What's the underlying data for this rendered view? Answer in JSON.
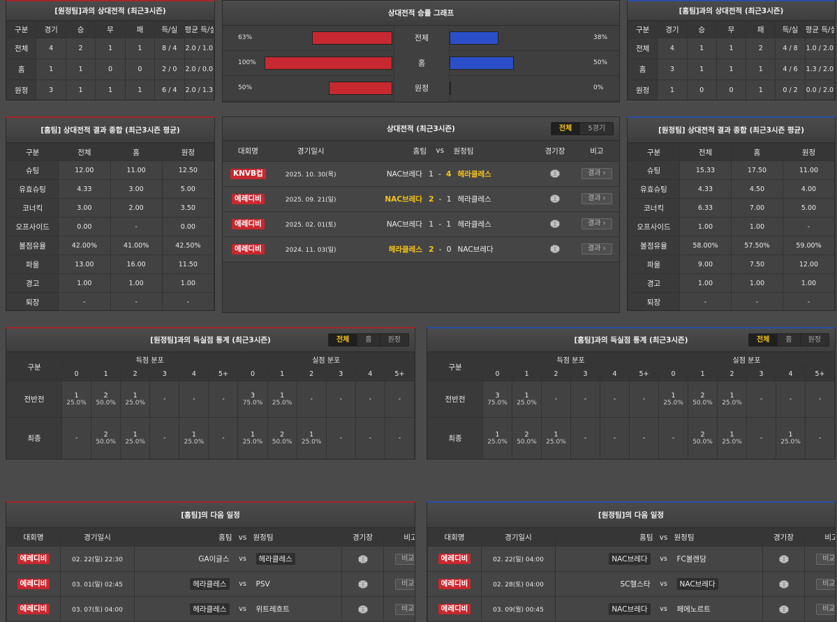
{
  "h2h_home": {
    "title": "[원정팀]과의 상대전적 (최근3시즌)",
    "headers": [
      "구분",
      "경기",
      "승",
      "무",
      "패",
      "득/실",
      "평균 득/실"
    ],
    "rows": [
      [
        "전체",
        "4",
        "2",
        "1",
        "1",
        "8 / 4",
        "2.0 / 1.0"
      ],
      [
        "홈",
        "1",
        "1",
        "0",
        "0",
        "2 / 0",
        "2.0 / 0.0"
      ],
      [
        "원정",
        "3",
        "1",
        "1",
        "1",
        "6 / 4",
        "2.0 / 1.3"
      ]
    ]
  },
  "h2h_away": {
    "title": "[홈팀]과의 상대전적 (최근3시즌)",
    "headers": [
      "구분",
      "경기",
      "승",
      "무",
      "패",
      "득/실",
      "평균 득/실"
    ],
    "rows": [
      [
        "전체",
        "4",
        "1",
        "1",
        "2",
        "4 / 8",
        "1.0 / 2.0"
      ],
      [
        "홈",
        "3",
        "1",
        "1",
        "1",
        "4 / 6",
        "1.3 / 2.0"
      ],
      [
        "원정",
        "1",
        "0",
        "0",
        "1",
        "0 / 2",
        "0.0 / 2.0"
      ]
    ]
  },
  "graph": {
    "title": "상대전적 승률 그래프",
    "colors": {
      "home": "#c8282f",
      "away": "#2a4fc8"
    },
    "rows": [
      {
        "label": "전체",
        "home_pct": "63%",
        "away_pct": "38%",
        "home": 63,
        "away": 38
      },
      {
        "label": "홈",
        "home_pct": "100%",
        "away_pct": "50%",
        "home": 100,
        "away": 50
      },
      {
        "label": "원정",
        "home_pct": "50%",
        "away_pct": "0%",
        "home": 50,
        "away": 0
      }
    ]
  },
  "sum_home": {
    "title": "[홈팀] 상대전적 결과 종합 (최근3시즌 평균)",
    "headers": [
      "구분",
      "전체",
      "홈",
      "원정"
    ],
    "rows": [
      [
        "슈팅",
        "12.00",
        "11.00",
        "12.50"
      ],
      [
        "유효슈팅",
        "4.33",
        "3.00",
        "5.00"
      ],
      [
        "코너킥",
        "3.00",
        "2.00",
        "3.50"
      ],
      [
        "오프사이드",
        "0.00",
        "-",
        "0.00"
      ],
      [
        "볼점유율",
        "42.00%",
        "41.00%",
        "42.50%"
      ],
      [
        "파울",
        "13.00",
        "16.00",
        "11.50"
      ],
      [
        "경고",
        "1.00",
        "1.00",
        "1.00"
      ],
      [
        "퇴장",
        "-",
        "-",
        "-"
      ]
    ]
  },
  "sum_away": {
    "title": "[원정팀] 상대전적 결과 종합 (최근3시즌 평균)",
    "headers": [
      "구분",
      "전체",
      "홈",
      "원정"
    ],
    "rows": [
      [
        "슈팅",
        "15.33",
        "17.50",
        "11.00"
      ],
      [
        "유효슈팅",
        "4.33",
        "4.50",
        "4.00"
      ],
      [
        "코너킥",
        "6.33",
        "7.00",
        "5.00"
      ],
      [
        "오프사이드",
        "1.00",
        "1.00",
        "-"
      ],
      [
        "볼점유율",
        "58.00%",
        "57.50%",
        "59.00%"
      ],
      [
        "파울",
        "9.00",
        "7.50",
        "12.00"
      ],
      [
        "경고",
        "1.00",
        "1.00",
        "1.00"
      ],
      [
        "퇴장",
        "-",
        "-",
        "-"
      ]
    ]
  },
  "recent": {
    "title": "상대전적 (최근3시즌)",
    "tabs": [
      "전체",
      "5경기"
    ],
    "headers": {
      "league": "대회명",
      "date": "경기일시",
      "home": "홈팀",
      "vs": "vs",
      "away": "원정팀",
      "venue": "경기장",
      "note": "비고"
    },
    "button": "결과 ›",
    "rows": [
      {
        "league": "KNVB컵",
        "date": "2025. 10. 30(목)",
        "home": "NAC브레다",
        "hs": "1",
        "as": "4",
        "away": "헤라클레스",
        "win": "away"
      },
      {
        "league": "에레디비",
        "date": "2025. 09. 21(일)",
        "home": "NAC브레다",
        "hs": "2",
        "as": "1",
        "away": "헤라클레스",
        "win": "home"
      },
      {
        "league": "에레디비",
        "date": "2025. 02. 01(토)",
        "home": "NAC브레다",
        "hs": "1",
        "as": "1",
        "away": "헤라클레스",
        "win": "none"
      },
      {
        "league": "에레디비",
        "date": "2024. 11. 03(일)",
        "home": "헤라클레스",
        "hs": "2",
        "as": "0",
        "away": "NAC브레다",
        "win": "home"
      }
    ]
  },
  "dist_home": {
    "title": "[원정팀]과의 득실점 통계 (최근3시즌)",
    "tabs": [
      "전체",
      "홈",
      "원정"
    ],
    "h": {
      "div": "구분",
      "scored": "득점 분포",
      "conceded": "실점 분포",
      "cols": [
        "0",
        "1",
        "2",
        "3",
        "4",
        "5+"
      ]
    },
    "rows": [
      {
        "label": "전반전",
        "cells": [
          [
            "1",
            "25.0%"
          ],
          [
            "2",
            "50.0%"
          ],
          [
            "1",
            "25.0%"
          ],
          [
            "-",
            ""
          ],
          [
            "-",
            ""
          ],
          [
            "-",
            ""
          ],
          [
            "3",
            "75.0%"
          ],
          [
            "1",
            "25.0%"
          ],
          [
            "-",
            ""
          ],
          [
            "-",
            ""
          ],
          [
            "-",
            ""
          ],
          [
            "-",
            ""
          ]
        ]
      },
      {
        "label": "최종",
        "cells": [
          [
            "-",
            ""
          ],
          [
            "2",
            "50.0%"
          ],
          [
            "1",
            "25.0%"
          ],
          [
            "-",
            ""
          ],
          [
            "1",
            "25.0%"
          ],
          [
            "-",
            ""
          ],
          [
            "1",
            "25.0%"
          ],
          [
            "2",
            "50.0%"
          ],
          [
            "1",
            "25.0%"
          ],
          [
            "-",
            ""
          ],
          [
            "-",
            ""
          ],
          [
            "-",
            ""
          ]
        ]
      }
    ]
  },
  "dist_away": {
    "title": "[홈팀]과의 득실점 통계 (최근3시즌)",
    "tabs": [
      "전체",
      "홈",
      "원정"
    ],
    "h": {
      "div": "구분",
      "scored": "득점 분포",
      "conceded": "실점 분포",
      "cols": [
        "0",
        "1",
        "2",
        "3",
        "4",
        "5+"
      ]
    },
    "rows": [
      {
        "label": "전반전",
        "cells": [
          [
            "3",
            "75.0%"
          ],
          [
            "1",
            "25.0%"
          ],
          [
            "-",
            ""
          ],
          [
            "-",
            ""
          ],
          [
            "-",
            ""
          ],
          [
            "-",
            ""
          ],
          [
            "1",
            "25.0%"
          ],
          [
            "2",
            "50.0%"
          ],
          [
            "1",
            "25.0%"
          ],
          [
            "-",
            ""
          ],
          [
            "-",
            ""
          ],
          [
            "-",
            ""
          ]
        ]
      },
      {
        "label": "최종",
        "cells": [
          [
            "1",
            "25.0%"
          ],
          [
            "2",
            "50.0%"
          ],
          [
            "1",
            "25.0%"
          ],
          [
            "-",
            ""
          ],
          [
            "-",
            ""
          ],
          [
            "-",
            ""
          ],
          [
            "-",
            ""
          ],
          [
            "2",
            "50.0%"
          ],
          [
            "1",
            "25.0%"
          ],
          [
            "-",
            ""
          ],
          [
            "1",
            "25.0%"
          ],
          [
            "-",
            ""
          ]
        ]
      }
    ]
  },
  "next_home": {
    "title": "[홈팀]의 다음 일정",
    "headers": {
      "league": "대회명",
      "date": "경기일시",
      "home": "홈팀",
      "vs": "vs",
      "away": "원정팀",
      "venue": "경기장",
      "note": "비고"
    },
    "button": "비교 ›",
    "rows": [
      {
        "league": "에레디비",
        "date": "02. 22(일) 22:30",
        "home": "GA이글스",
        "away": "헤라클레스",
        "box": "away"
      },
      {
        "league": "에레디비",
        "date": "03. 01(일) 02:45",
        "home": "헤라클레스",
        "away": "PSV",
        "box": "home"
      },
      {
        "league": "에레디비",
        "date": "03. 07(토) 04:00",
        "home": "헤라클레스",
        "away": "위트레흐트",
        "box": "home"
      }
    ]
  },
  "next_away": {
    "title": "[원정팀]의 다음 일정",
    "headers": {
      "league": "대회명",
      "date": "경기일시",
      "home": "홈팀",
      "vs": "vs",
      "away": "원정팀",
      "venue": "경기장",
      "note": "비고"
    },
    "button": "비교 ›",
    "rows": [
      {
        "league": "에레디비",
        "date": "02. 22(일) 04:00",
        "home": "NAC브레다",
        "away": "FC볼렌담",
        "box": "home"
      },
      {
        "league": "에레디비",
        "date": "02. 28(토) 04:00",
        "home": "SC헬스타",
        "away": "NAC브레다",
        "box": "away"
      },
      {
        "league": "에레디비",
        "date": "03. 09(월) 00:45",
        "home": "NAC브레다",
        "away": "페에노르트",
        "box": "home"
      }
    ]
  }
}
